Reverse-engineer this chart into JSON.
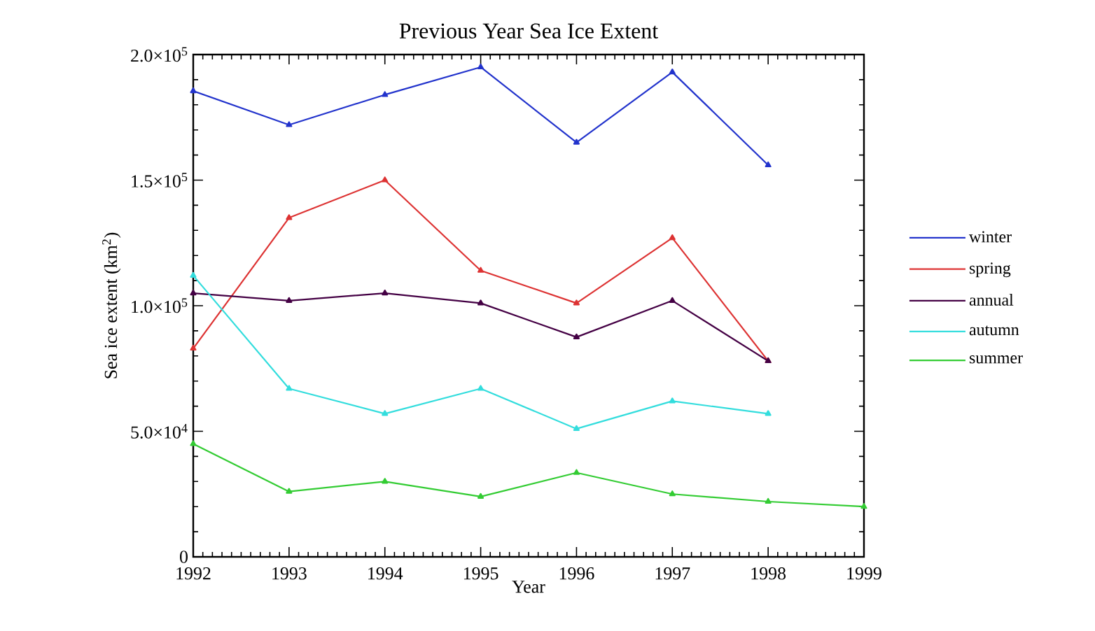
{
  "chart_data": {
    "type": "line",
    "title": "Previous Year Sea Ice Extent",
    "xlabel": "Year",
    "ylabel": "Sea ice extent (km$^{2}$)",
    "x": [
      1992,
      1993,
      1994,
      1995,
      1996,
      1997,
      1998,
      1999
    ],
    "series": [
      {
        "name": "winter",
        "color": "#2233cc",
        "values": [
          185500,
          172000,
          184000,
          195000,
          165000,
          193000,
          156000,
          null
        ]
      },
      {
        "name": "spring",
        "color": "#dd3333",
        "values": [
          83000,
          135000,
          150000,
          114000,
          101000,
          127000,
          78000,
          null
        ]
      },
      {
        "name": "annual",
        "color": "#440044",
        "values": [
          105000,
          102000,
          105000,
          101000,
          87500,
          102000,
          78000,
          null
        ]
      },
      {
        "name": "autumn",
        "color": "#33dddd",
        "values": [
          112000,
          67000,
          57000,
          67000,
          51000,
          62000,
          57000,
          null
        ]
      },
      {
        "name": "summer",
        "color": "#33cc33",
        "values": [
          45000,
          26000,
          30000,
          24000,
          33500,
          25000,
          22000,
          20000
        ]
      }
    ],
    "xlim": [
      1992,
      1999
    ],
    "ylim": [
      0,
      200000
    ],
    "xticks": [
      1992,
      1993,
      1994,
      1995,
      1996,
      1997,
      1998,
      1999
    ],
    "yticks": [
      0,
      {
        "value": 50000,
        "label": "5.0×10$^{4}$"
      },
      {
        "value": 100000,
        "label": "1.0×10$^{5}$"
      },
      {
        "value": 150000,
        "label": "1.5×10$^{5}$"
      },
      {
        "value": 200000,
        "label": "2.0×10$^{5}$"
      }
    ],
    "legend": "right",
    "marker": "triangle",
    "line_style": "solid"
  }
}
